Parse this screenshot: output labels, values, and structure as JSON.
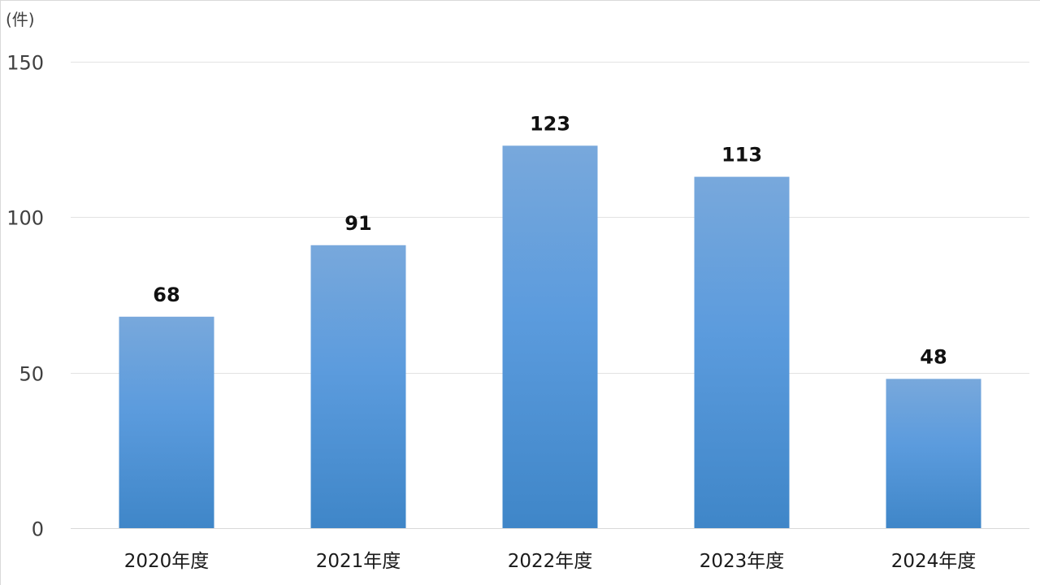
{
  "chart_data": {
    "type": "bar",
    "title": "",
    "xlabel": "",
    "ylabel": "(件)",
    "categories": [
      "2020年度",
      "2021年度",
      "2022年度",
      "2023年度",
      "2024年度"
    ],
    "values": [
      68,
      91,
      123,
      113,
      48
    ],
    "ylim": [
      0,
      150
    ],
    "yticks": [
      "0",
      "50",
      "100",
      "150"
    ],
    "data_labels": [
      "68",
      "91",
      "123",
      "113",
      "48"
    ],
    "grid": true,
    "legend": "none",
    "colors": {
      "bar_top": "#78a8dc",
      "bar_mid": "#5b9bdd",
      "bar_bottom": "#3f86c8"
    }
  }
}
